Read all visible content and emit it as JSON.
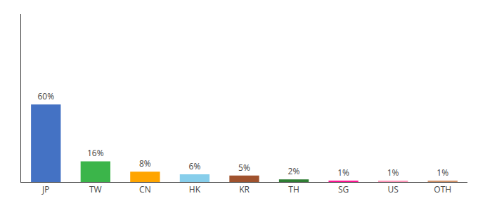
{
  "chart_data": {
    "type": "bar",
    "categories": [
      "JP",
      "TW",
      "CN",
      "HK",
      "KR",
      "TH",
      "SG",
      "US",
      "OTH"
    ],
    "values": [
      60,
      16,
      8,
      6,
      5,
      2,
      1,
      1,
      1
    ],
    "value_labels": [
      "60%",
      "16%",
      "8%",
      "6%",
      "5%",
      "2%",
      "1%",
      "1%",
      "1%"
    ],
    "data_labels": true,
    "colors": [
      "#4472C4",
      "#3BB54A",
      "#FFA500",
      "#87CEEB",
      "#A0522D",
      "#2E7D32",
      "#FF1493",
      "#FF99BB",
      "#D2936A"
    ],
    "ylim": [
      0,
      130
    ],
    "tick_labels": "x",
    "grid": false
  }
}
